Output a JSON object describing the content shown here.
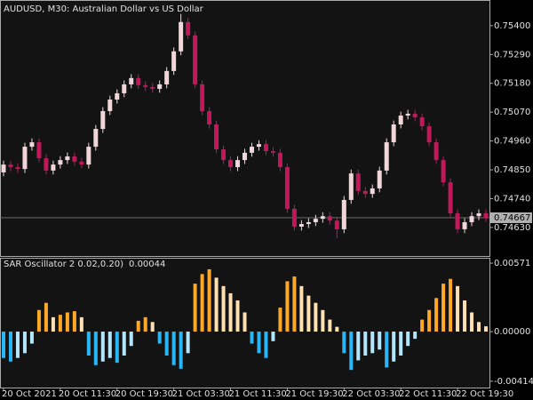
{
  "chart_data": [
    {
      "type": "candlestick",
      "title": "AUDUSD, M30:  Australian Dollar vs US Dollar",
      "categories": [
        "20 Oct 2021",
        null,
        null,
        null,
        null,
        null,
        null,
        null,
        "20 Oct 11:30",
        null,
        null,
        null,
        null,
        null,
        null,
        null,
        "20 Oct 19:30",
        null,
        null,
        null,
        null,
        null,
        null,
        null,
        "21 Oct 03:30",
        null,
        null,
        null,
        null,
        null,
        null,
        null,
        "21 Oct 11:30",
        null,
        null,
        null,
        null,
        null,
        null,
        null,
        "21 Oct 19:30",
        null,
        null,
        null,
        null,
        null,
        null,
        null,
        "22 Oct 03:30",
        null,
        null,
        null,
        null,
        null,
        null,
        null,
        "22 Oct 11:30",
        null,
        null,
        null,
        null,
        null,
        null,
        null,
        "22 Oct 19:30",
        null,
        null,
        null,
        null
      ],
      "open": [
        0.7484,
        0.7487,
        0.7486,
        0.74853,
        0.74938,
        0.74955,
        0.74894,
        0.74847,
        0.7487,
        0.74887,
        0.74901,
        0.74881,
        0.7487,
        0.74938,
        0.75006,
        0.75074,
        0.75118,
        0.75142,
        0.75176,
        0.752,
        0.75173,
        0.75166,
        0.75159,
        0.75176,
        0.75227,
        0.75302,
        0.75414,
        0.75363,
        0.75176,
        0.75074,
        0.75023,
        0.74928,
        0.74887,
        0.7486,
        0.74887,
        0.74915,
        0.74938,
        0.74948,
        0.74921,
        0.74915,
        0.7486,
        0.74701,
        0.74633,
        0.74643,
        0.7465,
        0.74663,
        0.74673,
        0.74656,
        0.74623,
        0.74735,
        0.74836,
        0.74769,
        0.74758,
        0.74779,
        0.74847,
        0.74955,
        0.75023,
        0.75057,
        0.75064,
        0.7505,
        0.75016,
        0.74955,
        0.74887,
        0.74802,
        0.74684,
        0.74623,
        0.7465,
        0.74673,
        0.74684
      ],
      "high": [
        0.74885,
        0.74885,
        0.74875,
        0.74953,
        0.7497,
        0.7497,
        0.74909,
        0.74885,
        0.74902,
        0.74916,
        0.74916,
        0.74896,
        0.74953,
        0.75021,
        0.75089,
        0.75133,
        0.75157,
        0.75191,
        0.75215,
        0.75215,
        0.75188,
        0.75181,
        0.75191,
        0.75242,
        0.75317,
        0.75445,
        0.75429,
        0.75378,
        0.75191,
        0.75089,
        0.75038,
        0.74943,
        0.74902,
        0.74902,
        0.7493,
        0.74953,
        0.74963,
        0.74963,
        0.74936,
        0.7493,
        0.74875,
        0.74716,
        0.74658,
        0.74665,
        0.74678,
        0.74688,
        0.74688,
        0.74671,
        0.7475,
        0.74851,
        0.74851,
        0.74784,
        0.74794,
        0.74862,
        0.7497,
        0.75038,
        0.75072,
        0.75079,
        0.75079,
        0.75065,
        0.75031,
        0.7497,
        0.74902,
        0.74817,
        0.74699,
        0.74665,
        0.74688,
        0.74699,
        0.74699
      ],
      "low": [
        0.74825,
        0.74845,
        0.74838,
        0.74838,
        0.74923,
        0.74879,
        0.74832,
        0.74832,
        0.74855,
        0.74872,
        0.74866,
        0.74855,
        0.74855,
        0.74923,
        0.74991,
        0.75059,
        0.75103,
        0.75127,
        0.75161,
        0.75158,
        0.75151,
        0.75144,
        0.75144,
        0.75161,
        0.75212,
        0.75287,
        0.75348,
        0.75161,
        0.75059,
        0.75008,
        0.74913,
        0.74872,
        0.74845,
        0.74845,
        0.74872,
        0.749,
        0.74923,
        0.74906,
        0.749,
        0.74845,
        0.74686,
        0.74618,
        0.74618,
        0.74628,
        0.74635,
        0.74648,
        0.74641,
        0.7459,
        0.74608,
        0.7472,
        0.74754,
        0.74743,
        0.74743,
        0.74764,
        0.74832,
        0.7494,
        0.75008,
        0.75042,
        0.75035,
        0.75001,
        0.7494,
        0.74872,
        0.74787,
        0.74669,
        0.74608,
        0.74608,
        0.74635,
        0.74658,
        0.74652
      ],
      "close": [
        0.7487,
        0.7486,
        0.74853,
        0.74938,
        0.74955,
        0.74894,
        0.74847,
        0.7487,
        0.74887,
        0.74901,
        0.74881,
        0.7487,
        0.74938,
        0.75006,
        0.75074,
        0.75118,
        0.75142,
        0.75176,
        0.752,
        0.75173,
        0.75166,
        0.75159,
        0.75176,
        0.75227,
        0.75302,
        0.75414,
        0.75363,
        0.75176,
        0.75074,
        0.75023,
        0.74928,
        0.74887,
        0.7486,
        0.74887,
        0.74915,
        0.74938,
        0.74948,
        0.74921,
        0.74915,
        0.7486,
        0.74701,
        0.74633,
        0.74643,
        0.7465,
        0.74663,
        0.74673,
        0.74656,
        0.74623,
        0.74735,
        0.74836,
        0.74769,
        0.74758,
        0.74779,
        0.74847,
        0.74955,
        0.75023,
        0.75057,
        0.75064,
        0.7505,
        0.75016,
        0.74955,
        0.74887,
        0.74802,
        0.74684,
        0.74623,
        0.7465,
        0.74673,
        0.74684,
        0.74667
      ],
      "ylim": [
        0.74521,
        0.75498
      ],
      "yticks": [
        {
          "value": 0.754,
          "label": "0.75400"
        },
        {
          "value": 0.7529,
          "label": "0.75290"
        },
        {
          "value": 0.7518,
          "label": "0.75180"
        },
        {
          "value": 0.7507,
          "label": "0.75070"
        },
        {
          "value": 0.7496,
          "label": "0.74960"
        },
        {
          "value": 0.7485,
          "label": "0.74850"
        },
        {
          "value": 0.7474,
          "label": "0.74740"
        },
        {
          "value": 0.7463,
          "label": "0.74630"
        }
      ],
      "current_price": 0.74667,
      "up_color": "#f3d6dc",
      "down_color": "#c2185b"
    },
    {
      "type": "histogram",
      "title": "SAR Oscillator 2 0.02,0.20)",
      "values": [
        -0.0022,
        -0.0025,
        -0.0022,
        -0.0018,
        -0.001,
        0.0018,
        0.0024,
        0.0012,
        0.0014,
        0.0016,
        0.0017,
        0.0012,
        -0.002,
        -0.0028,
        -0.0025,
        -0.0022,
        -0.0026,
        -0.002,
        -0.0012,
        0.0009,
        0.0012,
        0.0008,
        -0.001,
        -0.002,
        -0.0028,
        -0.0031,
        -0.0018,
        0.004,
        0.0048,
        0.0052,
        0.0045,
        0.0038,
        0.0032,
        0.0026,
        0.0016,
        -0.001,
        -0.0018,
        -0.0022,
        -0.0008,
        0.002,
        0.0042,
        0.0046,
        0.0038,
        0.003,
        0.0024,
        0.0018,
        0.001,
        0.0004,
        -0.0018,
        -0.0032,
        -0.0024,
        -0.002,
        -0.0018,
        -0.0015,
        -0.003,
        -0.0025,
        -0.002,
        -0.0012,
        -0.0006,
        0.001,
        0.0018,
        0.0028,
        0.004,
        0.0044,
        0.0038,
        0.0026,
        0.0016,
        0.0008,
        0.00044
      ],
      "ylim": [
        -0.00467,
        0.00616
      ],
      "yticks": [
        0.00571,
        {
          "value": 0,
          "label": "0.00000"
        },
        -0.00414
      ],
      "colors": {
        "positive_rising": "#ffa726",
        "positive_falling": "#ffe0b2",
        "negative_falling": "#29b6f6",
        "negative_rising": "#b3e5fc"
      }
    }
  ]
}
